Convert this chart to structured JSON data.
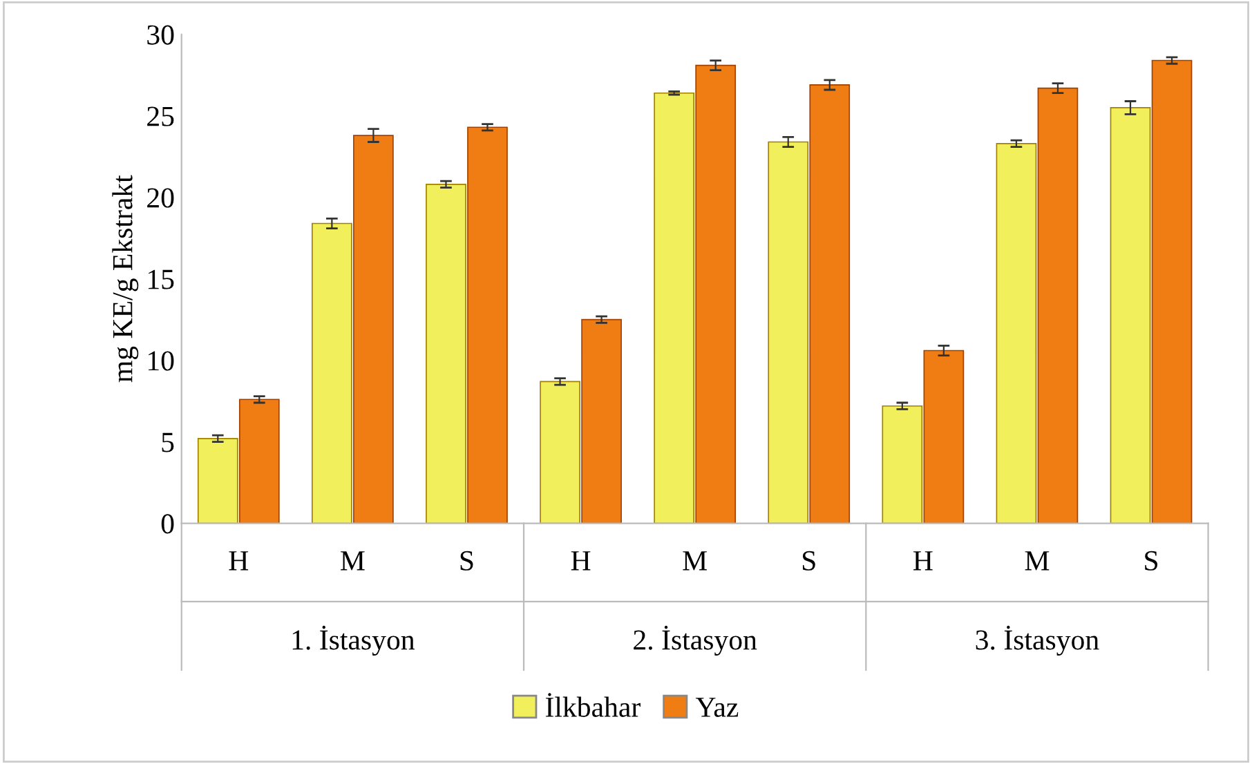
{
  "chart_data": {
    "type": "bar",
    "ylabel": "mg KE/g Ekstrakt",
    "categories": [
      "H",
      "M",
      "S",
      "H",
      "M",
      "S",
      "H",
      "M",
      "S"
    ],
    "annotations": [
      "1. İstasyon",
      "2. İstasyon",
      "3. İstasyon"
    ],
    "series": [
      {
        "name": "İlkbahar",
        "color": "#f2ef5c",
        "values": [
          5.2,
          18.4,
          20.8,
          8.7,
          26.4,
          23.4,
          7.2,
          23.3,
          25.5
        ],
        "errors": [
          0.2,
          0.3,
          0.2,
          0.2,
          0.1,
          0.3,
          0.2,
          0.2,
          0.4
        ]
      },
      {
        "name": "Yaz",
        "color": "#ef7d14",
        "values": [
          7.6,
          23.8,
          24.3,
          12.5,
          28.1,
          26.9,
          10.6,
          26.7,
          28.4
        ],
        "errors": [
          0.2,
          0.4,
          0.2,
          0.2,
          0.3,
          0.3,
          0.3,
          0.3,
          0.2
        ]
      }
    ],
    "ylim": [
      0,
      30
    ],
    "yticks": [
      0,
      5,
      10,
      15,
      20,
      25,
      30
    ],
    "grid": false,
    "legend": "bottom"
  }
}
